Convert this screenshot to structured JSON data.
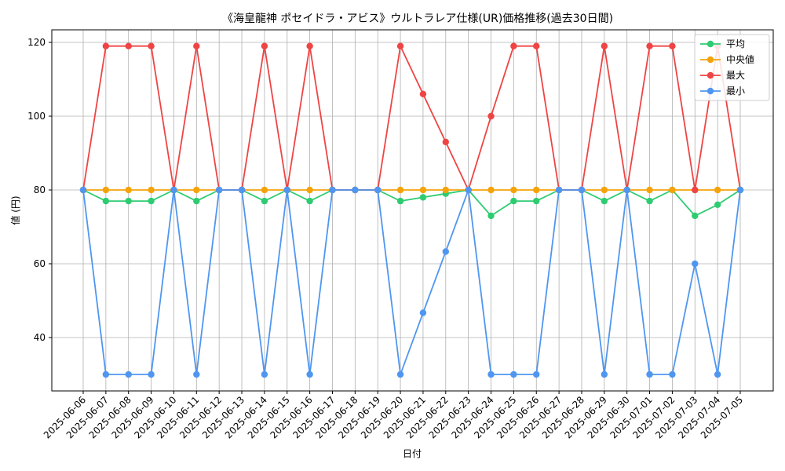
{
  "chart_data": {
    "type": "line",
    "title": "《海皇龍神 ポセイドラ・アビス》ウルトラレア仕様(UR)価格推移(過去30日間)",
    "xlabel": "日付",
    "ylabel": "値 (円)",
    "ylim": [
      25,
      124
    ],
    "yticks": [
      40,
      60,
      80,
      100,
      120
    ],
    "grid": true,
    "legend_position": "top-right",
    "categories": [
      "2025-06-06",
      "2025-06-07",
      "2025-06-08",
      "2025-06-09",
      "2025-06-10",
      "2025-06-11",
      "2025-06-12",
      "2025-06-13",
      "2025-06-14",
      "2025-06-15",
      "2025-06-16",
      "2025-06-17",
      "2025-06-18",
      "2025-06-19",
      "2025-06-20",
      "2025-06-21",
      "2025-06-22",
      "2025-06-23",
      "2025-06-24",
      "2025-06-25",
      "2025-06-26",
      "2025-06-27",
      "2025-06-28",
      "2025-06-29",
      "2025-06-30",
      "2025-07-01",
      "2025-07-02",
      "2025-07-03",
      "2025-07-04",
      "2025-07-05"
    ],
    "series": [
      {
        "name": "平均",
        "color": "#2ecc71",
        "values": [
          80,
          77,
          77,
          77,
          80,
          77,
          80,
          80,
          77,
          80,
          77,
          80,
          80,
          80,
          77,
          78,
          79,
          80,
          73,
          77,
          77,
          80,
          80,
          77,
          80,
          77,
          80,
          73,
          76,
          80
        ]
      },
      {
        "name": "中央値",
        "color": "#f5a30a",
        "values": [
          80,
          80,
          80,
          80,
          80,
          80,
          80,
          80,
          80,
          80,
          80,
          80,
          80,
          80,
          80,
          80,
          80,
          80,
          80,
          80,
          80,
          80,
          80,
          80,
          80,
          80,
          80,
          80,
          80,
          80
        ]
      },
      {
        "name": "最大",
        "color": "#ef4444",
        "values": [
          80,
          119,
          119,
          119,
          80,
          119,
          80,
          80,
          119,
          80,
          119,
          80,
          80,
          80,
          119,
          106,
          93,
          80,
          100,
          119,
          119,
          80,
          80,
          119,
          80,
          119,
          119,
          80,
          119,
          80
        ]
      },
      {
        "name": "最小",
        "color": "#4f96f0",
        "values": [
          80,
          30,
          30,
          30,
          80,
          30,
          80,
          80,
          30,
          80,
          30,
          80,
          80,
          80,
          30,
          46.7,
          63.3,
          80,
          30,
          30,
          30,
          80,
          80,
          30,
          80,
          30,
          30,
          60,
          30,
          80
        ]
      }
    ]
  }
}
